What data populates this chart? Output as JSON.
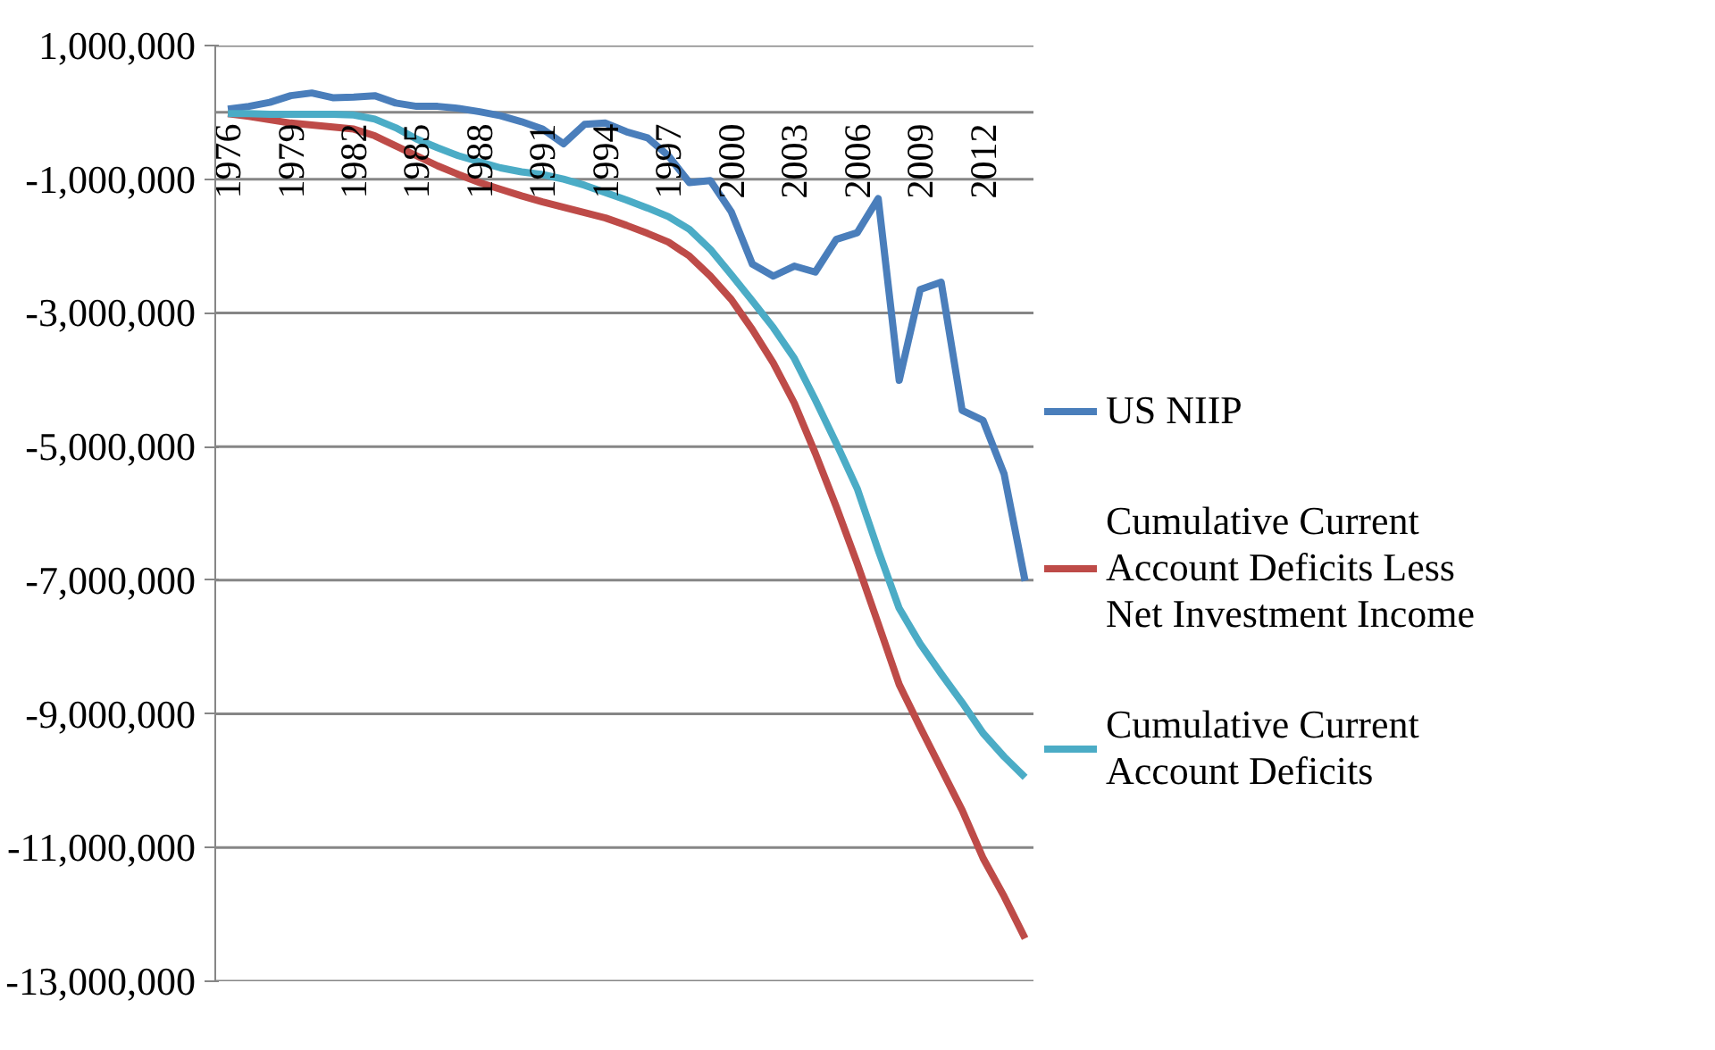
{
  "chart_data": {
    "type": "line",
    "categories": [
      "1976",
      null,
      null,
      "1979",
      null,
      null,
      "1982",
      null,
      null,
      "1985",
      null,
      null,
      "1988",
      null,
      null,
      "1991",
      null,
      null,
      "1994",
      null,
      null,
      "1997",
      null,
      null,
      "2000",
      null,
      null,
      "2003",
      null,
      null,
      "2006",
      null,
      null,
      "2009",
      null,
      null,
      "2012",
      null,
      null
    ],
    "series": [
      {
        "name": "US NIIP",
        "color": "#4a7ebb",
        "values": [
          50000,
          90000,
          150000,
          250000,
          290000,
          220000,
          230000,
          250000,
          140000,
          90000,
          90000,
          60000,
          10000,
          -50000,
          -140000,
          -250000,
          -470000,
          -180000,
          -160000,
          -290000,
          -380000,
          -650000,
          -1050000,
          -1020000,
          -1490000,
          -2270000,
          -2450000,
          -2300000,
          -2390000,
          -1900000,
          -1800000,
          -1290000,
          -4010000,
          -2650000,
          -2540000,
          -4460000,
          -4610000,
          -5410000,
          -7010000
        ]
      },
      {
        "name": "Cumulative Current Account Deficits Less Net Investment Income",
        "color": "#be4b48",
        "values": [
          -20000,
          -60000,
          -110000,
          -160000,
          -190000,
          -220000,
          -250000,
          -350000,
          -500000,
          -650000,
          -800000,
          -930000,
          -1050000,
          -1150000,
          -1250000,
          -1340000,
          -1420000,
          -1500000,
          -1580000,
          -1690000,
          -1810000,
          -1940000,
          -2150000,
          -2450000,
          -2800000,
          -3250000,
          -3750000,
          -4350000,
          -5100000,
          -5900000,
          -6750000,
          -7650000,
          -8560000,
          -9200000,
          -9820000,
          -10440000,
          -11160000,
          -11730000,
          -12360000
        ]
      },
      {
        "name": "Cumulative Current Account Deficits",
        "color": "#4bacc6",
        "values": [
          -20000,
          -20000,
          -30000,
          -30000,
          -30000,
          -30000,
          -40000,
          -100000,
          -230000,
          -400000,
          -530000,
          -650000,
          -740000,
          -830000,
          -890000,
          -930000,
          -1000000,
          -1090000,
          -1200000,
          -1310000,
          -1430000,
          -1560000,
          -1750000,
          -2050000,
          -2430000,
          -2820000,
          -3220000,
          -3680000,
          -4300000,
          -4950000,
          -5630000,
          -6550000,
          -7420000,
          -7950000,
          -8400000,
          -8830000,
          -9290000,
          -9640000,
          -9950000
        ]
      }
    ],
    "ylim": [
      -13000000,
      1000000
    ],
    "yticks": [
      {
        "value": 1000000,
        "label": "1,000,000"
      },
      {
        "value": -1000000,
        "label": "-1,000,000"
      },
      {
        "value": -3000000,
        "label": "-3,000,000"
      },
      {
        "value": -5000000,
        "label": "-5,000,000"
      },
      {
        "value": -7000000,
        "label": "-7,000,000"
      },
      {
        "value": -9000000,
        "label": "-9,000,000"
      },
      {
        "value": -11000000,
        "label": "-11,000,000"
      },
      {
        "value": -13000000,
        "label": "-13,000,000"
      }
    ],
    "grid": "y",
    "legend": "right",
    "marker": "none",
    "line_style": "solid"
  }
}
